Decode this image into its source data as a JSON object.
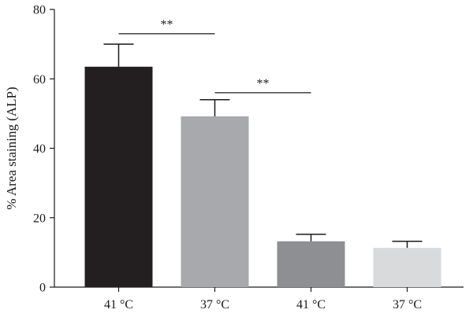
{
  "chart_data": {
    "type": "bar",
    "title": "",
    "xlabel": "",
    "ylabel": "% Area staining (ALP)",
    "ylim": [
      0,
      80
    ],
    "yticks": [
      0,
      20,
      40,
      60,
      80
    ],
    "categories": [
      "41 °C",
      "37 °C",
      "41 °C",
      "37 °C"
    ],
    "values": [
      63.5,
      49.2,
      13.2,
      11.3
    ],
    "errors": [
      6.5,
      4.8,
      2.0,
      1.9
    ],
    "bar_colors": [
      "#231f20",
      "#a7a9ac",
      "#8e8f93",
      "#d9dadb"
    ],
    "grid": false,
    "significance": [
      {
        "from": 0,
        "to": 1,
        "y": 73,
        "label": "**"
      },
      {
        "from": 1,
        "to": 2,
        "y": 56,
        "label": "**"
      }
    ]
  }
}
